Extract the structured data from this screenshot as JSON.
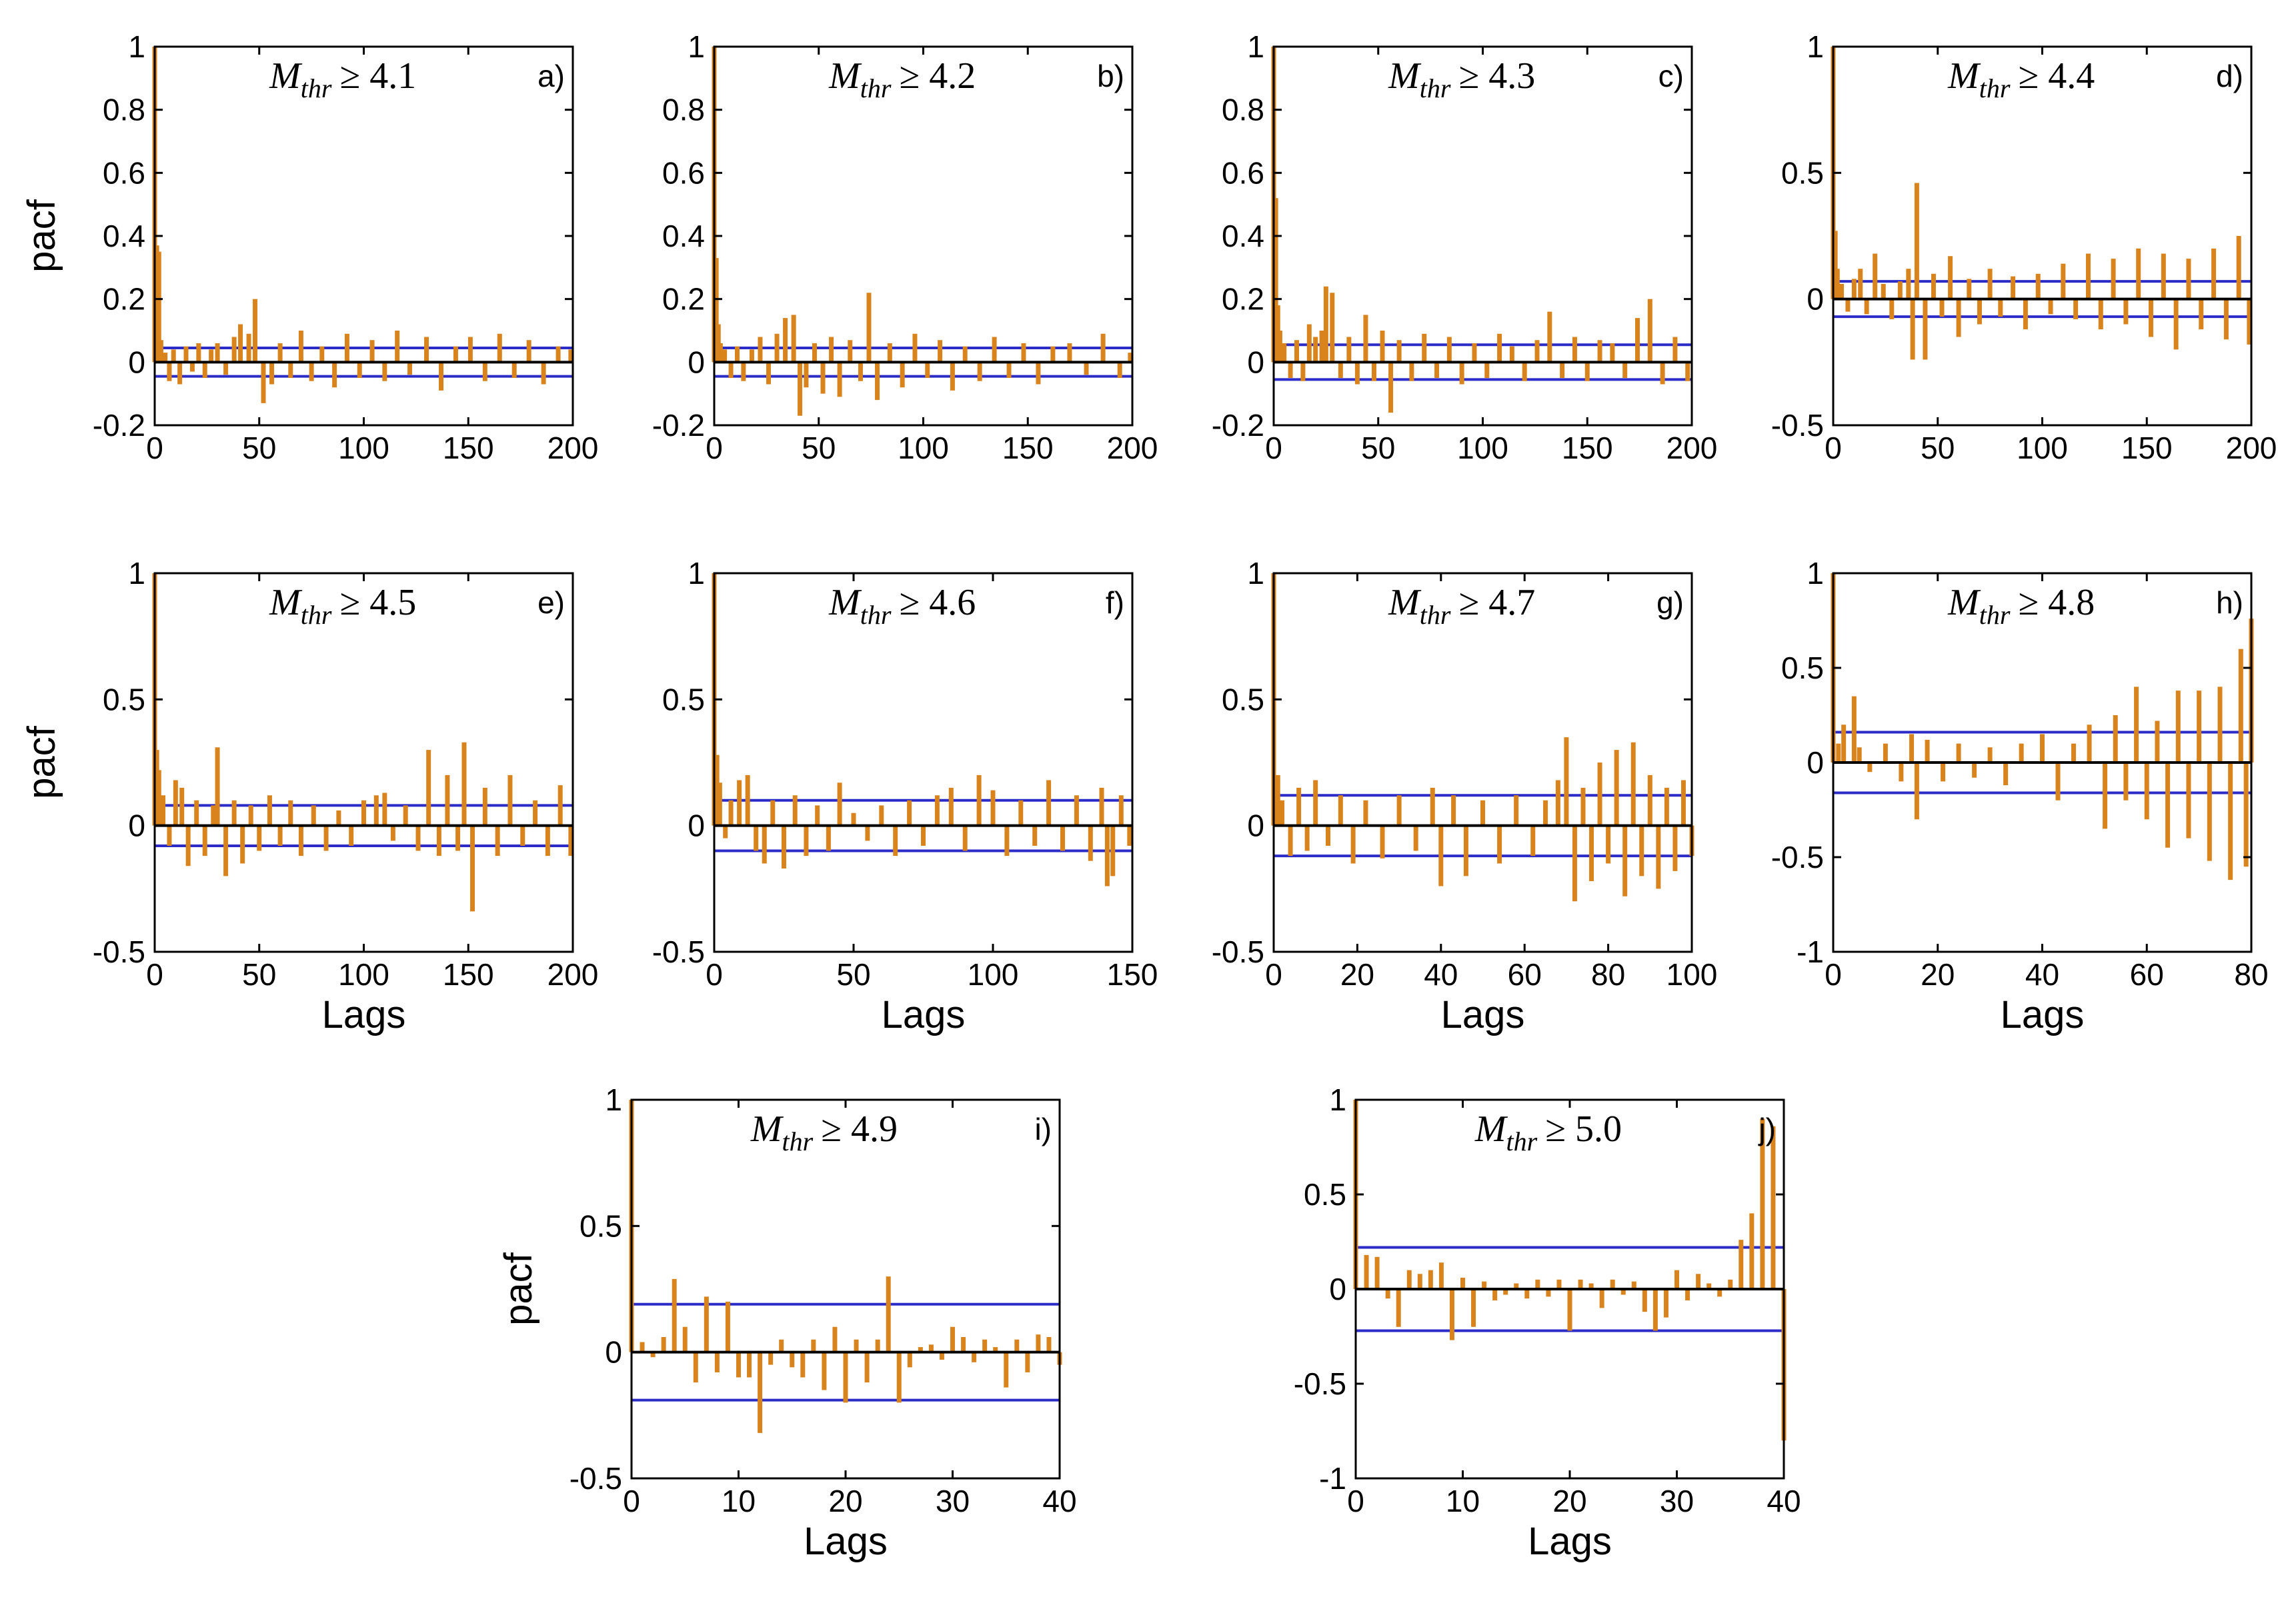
{
  "chart_data": [
    {
      "id": "a",
      "type": "bar",
      "panel_label": "a)",
      "title_prefix": "M",
      "title_sub": "thr",
      "title_rel": "≥ 4.1",
      "xlim": [
        0,
        200
      ],
      "ylim": [
        -0.2,
        1
      ],
      "xticks": [
        0,
        50,
        100,
        150,
        200
      ],
      "yticks": [
        -0.2,
        0,
        0.2,
        0.4,
        0.6,
        0.8,
        1
      ],
      "ytick_labels": [
        "-0.2",
        "0",
        "0.2",
        "0.4",
        "0.6",
        "0.8",
        "1"
      ],
      "ylabel": "pacf",
      "xlabel": "",
      "conf_bound": 0.045,
      "lags": [
        0,
        1,
        2,
        3,
        5,
        7,
        9,
        12,
        15,
        18,
        21,
        24,
        27,
        30,
        34,
        38,
        41,
        45,
        48,
        52,
        56,
        60,
        65,
        70,
        75,
        80,
        86,
        92,
        98,
        104,
        110,
        116,
        122,
        130,
        137,
        144,
        151,
        158,
        165,
        172,
        179,
        186,
        193,
        199
      ],
      "pacf": [
        1,
        0.37,
        0.35,
        0.07,
        0.03,
        -0.06,
        0.04,
        -0.07,
        0.05,
        -0.03,
        0.06,
        -0.05,
        0.04,
        0.06,
        -0.04,
        0.08,
        0.12,
        0.09,
        0.2,
        -0.13,
        -0.07,
        0.06,
        -0.05,
        0.1,
        -0.06,
        0.05,
        -0.08,
        0.09,
        -0.05,
        0.07,
        -0.06,
        0.1,
        -0.04,
        0.08,
        -0.09,
        0.05,
        0.08,
        -0.06,
        0.09,
        -0.05,
        0.07,
        -0.07,
        0.05,
        0.04
      ]
    },
    {
      "id": "b",
      "type": "bar",
      "panel_label": "b)",
      "title_prefix": "M",
      "title_sub": "thr",
      "title_rel": "≥ 4.2",
      "xlim": [
        0,
        200
      ],
      "ylim": [
        -0.2,
        1
      ],
      "xticks": [
        0,
        50,
        100,
        150,
        200
      ],
      "yticks": [
        -0.2,
        0,
        0.2,
        0.4,
        0.6,
        0.8,
        1
      ],
      "ytick_labels": [
        "-0.2",
        "0",
        "0.2",
        "0.4",
        "0.6",
        "0.8",
        "1"
      ],
      "ylabel": "",
      "xlabel": "",
      "conf_bound": 0.045,
      "lags": [
        0,
        1,
        2,
        3,
        5,
        8,
        11,
        14,
        18,
        22,
        26,
        30,
        34,
        38,
        41,
        44,
        48,
        52,
        56,
        60,
        65,
        70,
        74,
        78,
        84,
        90,
        96,
        102,
        108,
        114,
        120,
        127,
        134,
        141,
        148,
        155,
        162,
        170,
        178,
        186,
        194,
        199
      ],
      "pacf": [
        1,
        0.33,
        0.12,
        0.06,
        0.04,
        -0.05,
        0.05,
        -0.06,
        0.04,
        0.08,
        -0.07,
        0.09,
        0.14,
        0.15,
        -0.17,
        -0.08,
        0.06,
        -0.1,
        0.08,
        -0.11,
        0.07,
        -0.06,
        0.22,
        -0.12,
        0.06,
        -0.08,
        0.09,
        -0.05,
        0.07,
        -0.09,
        0.05,
        -0.06,
        0.08,
        -0.05,
        0.06,
        -0.07,
        0.05,
        0.06,
        -0.04,
        0.09,
        -0.05,
        0.03
      ]
    },
    {
      "id": "c",
      "type": "bar",
      "panel_label": "c)",
      "title_prefix": "M",
      "title_sub": "thr",
      "title_rel": "≥ 4.3",
      "xlim": [
        0,
        200
      ],
      "ylim": [
        -0.2,
        1
      ],
      "xticks": [
        0,
        50,
        100,
        150,
        200
      ],
      "yticks": [
        -0.2,
        0,
        0.2,
        0.4,
        0.6,
        0.8,
        1
      ],
      "ytick_labels": [
        "-0.2",
        "0",
        "0.2",
        "0.4",
        "0.6",
        "0.8",
        "1"
      ],
      "ylabel": "",
      "xlabel": "",
      "conf_bound": 0.055,
      "lags": [
        0,
        1,
        2,
        3,
        5,
        8,
        11,
        14,
        17,
        20,
        23,
        25,
        28,
        32,
        36,
        40,
        44,
        48,
        52,
        56,
        60,
        66,
        72,
        78,
        84,
        90,
        96,
        102,
        108,
        114,
        120,
        126,
        132,
        138,
        144,
        150,
        156,
        162,
        168,
        174,
        180,
        186,
        192,
        198
      ],
      "pacf": [
        1,
        0.52,
        0.18,
        0.1,
        0.06,
        -0.05,
        0.07,
        -0.06,
        0.12,
        0.08,
        0.1,
        0.24,
        0.22,
        -0.05,
        0.08,
        -0.07,
        0.15,
        -0.06,
        0.1,
        -0.16,
        0.07,
        -0.06,
        0.09,
        -0.05,
        0.08,
        -0.07,
        0.06,
        -0.05,
        0.09,
        0.05,
        -0.06,
        0.07,
        0.16,
        -0.05,
        0.08,
        -0.06,
        0.07,
        0.06,
        -0.05,
        0.14,
        0.2,
        -0.07,
        0.08,
        -0.06
      ]
    },
    {
      "id": "d",
      "type": "bar",
      "panel_label": "d)",
      "title_prefix": "M",
      "title_sub": "thr",
      "title_rel": "≥ 4.4",
      "xlim": [
        0,
        200
      ],
      "ylim": [
        -0.5,
        1
      ],
      "xticks": [
        0,
        50,
        100,
        150,
        200
      ],
      "yticks": [
        -0.5,
        0,
        0.5,
        1
      ],
      "ytick_labels": [
        "-0.5",
        "0",
        "0.5",
        "1"
      ],
      "ylabel": "",
      "xlabel": "",
      "conf_bound": 0.07,
      "lags": [
        0,
        1,
        2,
        4,
        7,
        10,
        13,
        16,
        20,
        24,
        28,
        32,
        36,
        38,
        40,
        44,
        48,
        52,
        56,
        60,
        65,
        70,
        75,
        80,
        86,
        92,
        98,
        104,
        110,
        116,
        122,
        128,
        134,
        140,
        146,
        152,
        158,
        164,
        170,
        176,
        182,
        188,
        194,
        199
      ],
      "pacf": [
        1,
        0.27,
        0.12,
        0.06,
        -0.05,
        0.08,
        0.12,
        -0.06,
        0.18,
        0.06,
        -0.08,
        0.07,
        0.12,
        -0.24,
        0.46,
        -0.24,
        0.1,
        -0.07,
        0.17,
        -0.15,
        0.08,
        -0.1,
        0.12,
        -0.07,
        0.09,
        -0.12,
        0.1,
        -0.06,
        0.14,
        -0.08,
        0.18,
        -0.12,
        0.16,
        -0.1,
        0.2,
        -0.15,
        0.18,
        -0.2,
        0.16,
        -0.12,
        0.2,
        -0.16,
        0.25,
        -0.18
      ]
    },
    {
      "id": "e",
      "type": "bar",
      "panel_label": "e)",
      "title_prefix": "M",
      "title_sub": "thr",
      "title_rel": "≥ 4.5",
      "xlim": [
        0,
        200
      ],
      "ylim": [
        -0.5,
        1
      ],
      "xticks": [
        0,
        50,
        100,
        150,
        200
      ],
      "yticks": [
        -0.5,
        0,
        0.5,
        1
      ],
      "ytick_labels": [
        "-0.5",
        "0",
        "0.5",
        "1"
      ],
      "ylabel": "pacf",
      "xlabel": "Lags",
      "conf_bound": 0.08,
      "lags": [
        0,
        1,
        2,
        4,
        7,
        10,
        13,
        16,
        20,
        24,
        28,
        30,
        34,
        38,
        42,
        46,
        50,
        55,
        60,
        65,
        70,
        76,
        82,
        88,
        94,
        100,
        106,
        110,
        114,
        120,
        126,
        131,
        136,
        140,
        145,
        148,
        152,
        158,
        164,
        170,
        176,
        182,
        188,
        194,
        199
      ],
      "pacf": [
        1,
        0.3,
        0.22,
        0.12,
        -0.08,
        0.18,
        0.15,
        -0.16,
        0.1,
        -0.12,
        0.08,
        0.31,
        -0.2,
        0.1,
        -0.15,
        0.08,
        -0.1,
        0.12,
        -0.08,
        0.1,
        -0.12,
        0.08,
        -0.1,
        0.06,
        -0.08,
        0.1,
        0.12,
        0.13,
        -0.06,
        0.08,
        -0.1,
        0.3,
        -0.12,
        0.2,
        -0.1,
        0.33,
        -0.34,
        0.15,
        -0.12,
        0.2,
        -0.08,
        0.1,
        -0.12,
        0.16,
        -0.12
      ]
    },
    {
      "id": "f",
      "type": "bar",
      "panel_label": "f)",
      "title_prefix": "M",
      "title_sub": "thr",
      "title_rel": "≥ 4.6",
      "xlim": [
        0,
        150
      ],
      "ylim": [
        -0.5,
        1
      ],
      "xticks": [
        0,
        50,
        100,
        150
      ],
      "yticks": [
        -0.5,
        0,
        0.5,
        1
      ],
      "ytick_labels": [
        "-0.5",
        "0",
        "0.5",
        "1"
      ],
      "ylabel": "",
      "xlabel": "Lags",
      "conf_bound": 0.1,
      "lags": [
        0,
        1,
        2,
        4,
        6,
        9,
        12,
        15,
        18,
        21,
        25,
        29,
        33,
        37,
        41,
        45,
        50,
        55,
        60,
        65,
        70,
        75,
        80,
        85,
        90,
        95,
        100,
        105,
        110,
        115,
        120,
        125,
        130,
        135,
        139,
        141,
        143,
        146,
        149
      ],
      "pacf": [
        1,
        0.28,
        0.17,
        -0.05,
        0.1,
        0.18,
        0.2,
        -0.1,
        -0.15,
        0.1,
        -0.17,
        0.12,
        -0.12,
        0.08,
        -0.1,
        0.17,
        0.05,
        -0.06,
        0.08,
        -0.12,
        0.1,
        -0.08,
        0.12,
        0.15,
        -0.1,
        0.2,
        0.14,
        -0.12,
        0.1,
        -0.08,
        0.18,
        -0.1,
        0.12,
        -0.14,
        0.15,
        -0.24,
        -0.2,
        0.12,
        -0.08
      ]
    },
    {
      "id": "g",
      "type": "bar",
      "panel_label": "g)",
      "title_prefix": "M",
      "title_sub": "thr",
      "title_rel": "≥ 4.7",
      "xlim": [
        0,
        100
      ],
      "ylim": [
        -0.5,
        1
      ],
      "xticks": [
        0,
        20,
        40,
        60,
        80,
        100
      ],
      "yticks": [
        -0.5,
        0,
        0.5,
        1
      ],
      "ytick_labels": [
        "-0.5",
        "0",
        "0.5",
        "1"
      ],
      "ylabel": "",
      "xlabel": "Lags",
      "conf_bound": 0.12,
      "lags": [
        0,
        1,
        2,
        4,
        6,
        8,
        10,
        13,
        16,
        19,
        22,
        26,
        30,
        34,
        38,
        40,
        43,
        46,
        50,
        54,
        58,
        62,
        65,
        68,
        70,
        72,
        74,
        76,
        78,
        80,
        82,
        84,
        86,
        88,
        90,
        92,
        94,
        96,
        98,
        100
      ],
      "pacf": [
        1,
        0.2,
        0.1,
        -0.12,
        0.15,
        -0.1,
        0.18,
        -0.08,
        0.12,
        -0.15,
        0.1,
        -0.13,
        0.12,
        -0.1,
        0.15,
        -0.24,
        0.12,
        -0.2,
        0.1,
        -0.15,
        0.12,
        -0.12,
        0.1,
        0.18,
        0.35,
        -0.3,
        0.15,
        -0.22,
        0.25,
        -0.15,
        0.3,
        -0.28,
        0.33,
        -0.2,
        0.2,
        -0.25,
        0.15,
        -0.18,
        0.18,
        -0.12
      ]
    },
    {
      "id": "h",
      "type": "bar",
      "panel_label": "h)",
      "title_prefix": "M",
      "title_sub": "thr",
      "title_rel": "≥ 4.8",
      "xlim": [
        0,
        80
      ],
      "ylim": [
        -1,
        1
      ],
      "xticks": [
        0,
        20,
        40,
        60,
        80
      ],
      "yticks": [
        -1,
        -0.5,
        0,
        0.5,
        1
      ],
      "ytick_labels": [
        "-1",
        "-0.5",
        "0",
        "0.5",
        "1"
      ],
      "ylabel": "",
      "xlabel": "Lags",
      "conf_bound": 0.16,
      "lags": [
        0,
        1,
        2,
        4,
        5,
        7,
        10,
        13,
        15,
        16,
        18,
        21,
        24,
        27,
        30,
        33,
        36,
        40,
        43,
        46,
        49,
        52,
        54,
        56,
        58,
        60,
        62,
        64,
        66,
        68,
        70,
        72,
        74,
        76,
        78,
        79,
        80
      ],
      "pacf": [
        1,
        0.1,
        0.2,
        0.35,
        0.08,
        -0.05,
        0.1,
        -0.1,
        0.15,
        -0.3,
        0.12,
        -0.1,
        0.1,
        -0.08,
        0.08,
        -0.12,
        0.1,
        0.15,
        -0.2,
        0.1,
        0.2,
        -0.35,
        0.25,
        -0.2,
        0.4,
        -0.3,
        0.22,
        -0.45,
        0.38,
        -0.4,
        0.38,
        -0.52,
        0.4,
        -0.62,
        0.6,
        -0.55,
        0.76
      ]
    },
    {
      "id": "i",
      "type": "bar",
      "panel_label": "i)",
      "title_prefix": "M",
      "title_sub": "thr",
      "title_rel": "≥ 4.9",
      "xlim": [
        0,
        40
      ],
      "ylim": [
        -0.5,
        1
      ],
      "xticks": [
        0,
        10,
        20,
        30,
        40
      ],
      "yticks": [
        -0.5,
        0,
        0.5,
        1
      ],
      "ytick_labels": [
        "-0.5",
        "0",
        "0.5",
        "1"
      ],
      "ylabel": "pacf",
      "xlabel": "Lags",
      "conf_bound": 0.19,
      "lags": [
        0,
        1,
        2,
        3,
        4,
        5,
        6,
        7,
        8,
        9,
        10,
        11,
        12,
        13,
        14,
        15,
        16,
        17,
        18,
        19,
        20,
        21,
        22,
        23,
        24,
        25,
        26,
        27,
        28,
        29,
        30,
        31,
        32,
        33,
        34,
        35,
        36,
        37,
        38,
        39,
        40
      ],
      "pacf": [
        1,
        0.04,
        -0.02,
        0.06,
        0.29,
        0.1,
        -0.12,
        0.22,
        -0.08,
        0.2,
        -0.1,
        -0.1,
        -0.32,
        -0.05,
        0.05,
        -0.06,
        -0.1,
        0.05,
        -0.15,
        0.1,
        -0.2,
        0.05,
        -0.12,
        0.05,
        0.3,
        -0.2,
        -0.06,
        0.02,
        0.03,
        -0.03,
        0.1,
        0.06,
        -0.04,
        0.05,
        0.02,
        -0.14,
        0.05,
        -0.08,
        0.07,
        0.06,
        -0.05
      ]
    },
    {
      "id": "j",
      "type": "bar",
      "panel_label": "j)",
      "title_prefix": "M",
      "title_sub": "thr",
      "title_rel": "≥ 5.0",
      "xlim": [
        0,
        40
      ],
      "ylim": [
        -1,
        1
      ],
      "xticks": [
        0,
        10,
        20,
        30,
        40
      ],
      "yticks": [
        -1,
        -0.5,
        0,
        0.5,
        1
      ],
      "ytick_labels": [
        "-1",
        "-0.5",
        "0",
        "0.5",
        "1"
      ],
      "ylabel": "",
      "xlabel": "Lags",
      "conf_bound": 0.22,
      "lags": [
        0,
        1,
        2,
        3,
        4,
        5,
        6,
        7,
        8,
        9,
        10,
        11,
        12,
        13,
        14,
        15,
        16,
        17,
        18,
        19,
        20,
        21,
        22,
        23,
        24,
        25,
        26,
        27,
        28,
        29,
        30,
        31,
        32,
        33,
        34,
        35,
        36,
        37,
        38,
        39,
        40
      ],
      "pacf": [
        1,
        0.18,
        0.17,
        -0.05,
        -0.2,
        0.1,
        0.08,
        0.1,
        0.14,
        -0.27,
        0.06,
        -0.2,
        0.04,
        -0.06,
        -0.03,
        0.03,
        -0.05,
        0.05,
        -0.04,
        0.05,
        -0.22,
        0.05,
        0.03,
        -0.1,
        0.05,
        -0.03,
        0.04,
        -0.12,
        -0.22,
        -0.15,
        0.1,
        -0.06,
        0.08,
        0.03,
        -0.04,
        0.05,
        0.26,
        0.4,
        0.9,
        0.86,
        -0.8
      ]
    }
  ],
  "colors": {
    "bars": "#d9831c",
    "bounds": "#2b2bc8",
    "axes": "#000000"
  }
}
